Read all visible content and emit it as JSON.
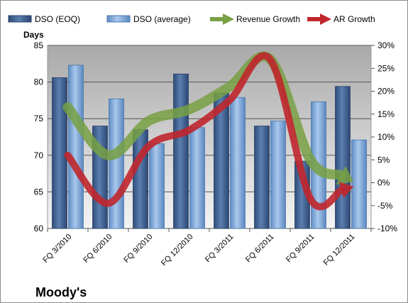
{
  "chart_data": {
    "type": "bar",
    "title": "Moody's",
    "ylabel": "Days",
    "y2label": "",
    "ylim": [
      60,
      85
    ],
    "y2lim": [
      -10,
      30
    ],
    "yticks": [
      "60",
      "65",
      "70",
      "75",
      "80",
      "85"
    ],
    "y2ticks": [
      "-10%",
      "-5%",
      "0%",
      "5%",
      "10%",
      "15%",
      "20%",
      "25%",
      "30%"
    ],
    "categories": [
      "FQ 3/2010",
      "FQ 6/2010",
      "FQ 9/2010",
      "FQ 12/2010",
      "FQ 3/2011",
      "FQ 6/2011",
      "FQ 9/2011",
      "FQ 12/2011"
    ],
    "series": [
      {
        "name": "DSO (EOQ)",
        "kind": "bar",
        "axis": "left",
        "color": "#3d5f8f",
        "values": [
          80.6,
          74.0,
          73.5,
          81.1,
          78.5,
          74.0,
          69.2,
          79.4
        ]
      },
      {
        "name": "DSO (average)",
        "kind": "bar",
        "axis": "left",
        "color": "#7aa3d4",
        "values": [
          82.3,
          77.7,
          71.6,
          73.8,
          77.9,
          74.7,
          77.3,
          72.1
        ]
      },
      {
        "name": "Revenue Growth",
        "kind": "arrow-line",
        "axis": "right",
        "color": "#77a043",
        "values": [
          16.5,
          6.0,
          13.5,
          16.0,
          21.0,
          27.0,
          5.0,
          0.5
        ]
      },
      {
        "name": "AR Growth",
        "kind": "arrow-line",
        "axis": "right",
        "color": "#c0262c",
        "values": [
          6.0,
          -4.5,
          8.0,
          11.5,
          18.0,
          27.0,
          -3.5,
          -1.0
        ]
      }
    ],
    "grid": true,
    "legend": "top"
  }
}
